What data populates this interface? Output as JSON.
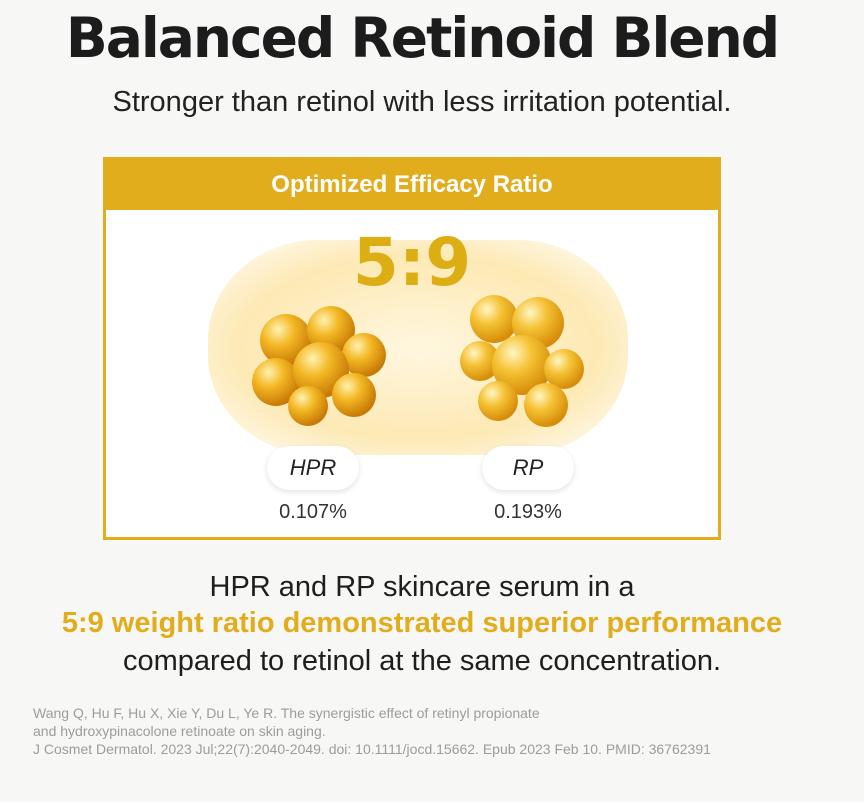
{
  "heading": {
    "title": "Balanced Retinoid Blend",
    "subtitle": "Stronger than retinol with less irritation potential."
  },
  "card": {
    "header": "Optimized Efficacy Ratio",
    "ratio": "5:9",
    "ingredients": [
      {
        "label": "HPR",
        "percent": "0.107%"
      },
      {
        "label": "RP",
        "percent": "0.193%"
      }
    ]
  },
  "description": {
    "line1": "HPR and RP skincare serum in a",
    "line2": "5:9 weight ratio demonstrated superior performance",
    "line3": "compared to retinol at the same concentration."
  },
  "citation": {
    "line1": "Wang Q, Hu F, Hu X, Xie Y, Du L, Ye R. The synergistic effect of retinyl propionate",
    "line2": "and hydroxypinacolone retinoate on skin aging.",
    "line3": "J Cosmet Dermatol. 2023 Jul;22(7):2040-2049. doi: 10.1111/jocd.15662. Epub 2023 Feb 10. PMID: 36762391"
  },
  "colors": {
    "accent": "#e2ad1c",
    "ratio": "#ddae14",
    "background": "#f7f7f6"
  }
}
